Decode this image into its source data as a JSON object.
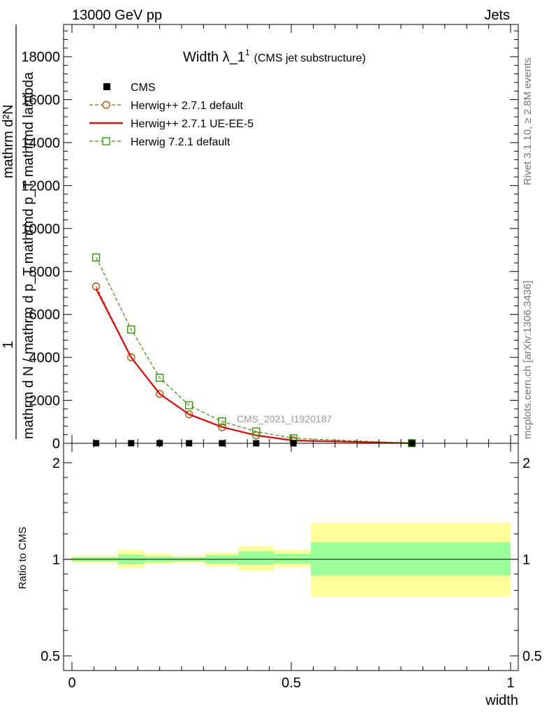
{
  "header": {
    "left": "13000 GeV pp",
    "right": "Jets"
  },
  "side_labels": {
    "rivet": "Rivet 3.1.10, ≥ 2.8M events",
    "mcplots": "mcplots.cern.ch [arXiv:1306.3436]"
  },
  "chart_data": [
    {
      "type": "line",
      "title_main": "Width λ_1",
      "title_sup": "1",
      "title_sub": "(CMS jet substructure)",
      "ylabel_parts": [
        "1",
        "mathrm d N / mathrm d p_T mathrmd p_T mathrmd lambda",
        "mathrm d²N"
      ],
      "xlim": [
        0,
        1
      ],
      "ylim": [
        0,
        19500
      ],
      "yticks": [
        0,
        2000,
        4000,
        6000,
        8000,
        10000,
        12000,
        14000,
        16000,
        18000
      ],
      "ytick_labels": [
        "0",
        "2000",
        "4000",
        "6000",
        "8000",
        "10000",
        "12000",
        "14000",
        "16000",
        "18000"
      ],
      "watermark": "CMS_2021_I1920187",
      "legend": [
        "CMS",
        "Herwig++ 2.7.1 default",
        "Herwig++ 2.7.1 UE-EE-5",
        "Herwig 7.2.1 default"
      ],
      "colors": {
        "cms": "#000000",
        "h271def": "#b35900",
        "h271ue": "#ee0000",
        "h721": "#339900"
      },
      "x": [
        0.055,
        0.135,
        0.2,
        0.267,
        0.342,
        0.42,
        0.505,
        0.775
      ],
      "series": [
        {
          "name": "CMS",
          "values": [
            6,
            5,
            5,
            4,
            3,
            2,
            1,
            0.2
          ]
        },
        {
          "name": "Herwig++ 2.7.1 default",
          "values": [
            7300,
            4000,
            2300,
            1350,
            750,
            370,
            130,
            5
          ]
        },
        {
          "name": "Herwig++ 2.7.1 UE-EE-5",
          "values": [
            7200,
            4000,
            2300,
            1350,
            760,
            370,
            130,
            5
          ]
        },
        {
          "name": "Herwig 7.2.1 default",
          "values": [
            8650,
            5300,
            3050,
            1770,
            1020,
            550,
            230,
            8
          ]
        }
      ]
    },
    {
      "type": "area",
      "ylabel": "Ratio to CMS",
      "xlabel": "width",
      "log_scale": true,
      "ylim": [
        0.45,
        2.3
      ],
      "yticks": [
        0.5,
        1,
        2
      ],
      "ytick_labels": [
        "0.5",
        "1",
        "2"
      ],
      "xticks": [
        0,
        0.5,
        1
      ],
      "xtick_labels": [
        "0",
        "0.5",
        "1"
      ],
      "colors": {
        "inner": "#99ff99",
        "outer": "#ffff99"
      },
      "bins": [
        {
          "lo": 0.0,
          "hi": 0.105,
          "inner": [
            0.985,
            1.015
          ],
          "outer": [
            0.975,
            1.025
          ]
        },
        {
          "lo": 0.105,
          "hi": 0.165,
          "inner": [
            0.965,
            1.035
          ],
          "outer": [
            0.94,
            1.07
          ]
        },
        {
          "lo": 0.165,
          "hi": 0.23,
          "inner": [
            0.98,
            1.02
          ],
          "outer": [
            0.965,
            1.04
          ]
        },
        {
          "lo": 0.23,
          "hi": 0.305,
          "inner": [
            0.985,
            1.015
          ],
          "outer": [
            0.975,
            1.025
          ]
        },
        {
          "lo": 0.305,
          "hi": 0.38,
          "inner": [
            0.97,
            1.03
          ],
          "outer": [
            0.95,
            1.05
          ]
        },
        {
          "lo": 0.38,
          "hi": 0.46,
          "inner": [
            0.96,
            1.06
          ],
          "outer": [
            0.92,
            1.1
          ]
        },
        {
          "lo": 0.46,
          "hi": 0.545,
          "inner": [
            0.97,
            1.04
          ],
          "outer": [
            0.945,
            1.07
          ]
        },
        {
          "lo": 0.545,
          "hi": 1.0,
          "inner": [
            0.89,
            1.13
          ],
          "outer": [
            0.765,
            1.3
          ]
        }
      ]
    }
  ]
}
